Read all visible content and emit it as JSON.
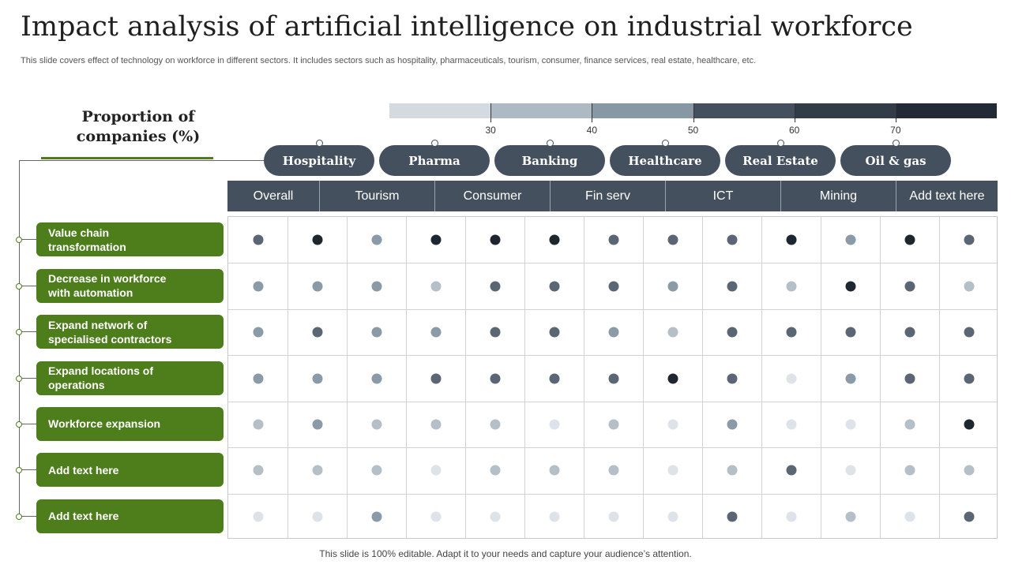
{
  "title": "Impact analysis of artificial intelligence on industrial workforce",
  "subtitle": "This slide covers effect of technology on workforce in different sectors. It includes sectors such as hospitality, pharmaceuticals, tourism, consumer, finance services, real estate, healthcare, etc.",
  "proportion_heading": "Proportion of companies (%)",
  "scale": {
    "colors": [
      "#d3dbe1",
      "#adb9c3",
      "#8797a4",
      "#44505e",
      "#323c48",
      "#222b35"
    ],
    "ticks": [
      "30",
      "40",
      "50",
      "60",
      "70"
    ]
  },
  "sectors": [
    "Hospitality",
    "Pharma",
    "Banking",
    "Healthcare",
    "Real Estate",
    "Oil & gas"
  ],
  "columns": [
    "Overall",
    "Tourism",
    "Consumer",
    "Fin serv",
    "ICT",
    "Mining",
    "Add text here"
  ],
  "rows": [
    "Value chain transformation",
    "Decrease in workforce with automation",
    "Expand network of specialised contractors",
    "Expand locations of operations",
    "Workforce expansion",
    "Add  text here",
    "Add  text here"
  ],
  "matrix": [
    [
      3,
      5,
      2,
      5,
      5,
      5,
      3,
      3,
      3,
      5,
      2,
      5,
      3
    ],
    [
      2,
      2,
      2,
      1,
      3,
      3,
      3,
      2,
      3,
      1,
      5,
      3,
      1
    ],
    [
      2,
      3,
      2,
      2,
      3,
      3,
      2,
      1,
      3,
      3,
      3,
      3,
      3
    ],
    [
      2,
      2,
      2,
      3,
      3,
      3,
      3,
      5,
      3,
      0,
      2,
      3,
      3
    ],
    [
      1,
      2,
      1,
      1,
      1,
      0,
      1,
      0,
      2,
      0,
      0,
      1,
      5
    ],
    [
      1,
      1,
      1,
      0,
      1,
      1,
      1,
      0,
      1,
      3,
      0,
      1,
      1
    ],
    [
      0,
      0,
      2,
      0,
      0,
      0,
      0,
      0,
      3,
      0,
      1,
      0,
      3
    ]
  ],
  "footer": "This slide is 100% editable. Adapt it to your needs and capture your audience’s attention."
}
